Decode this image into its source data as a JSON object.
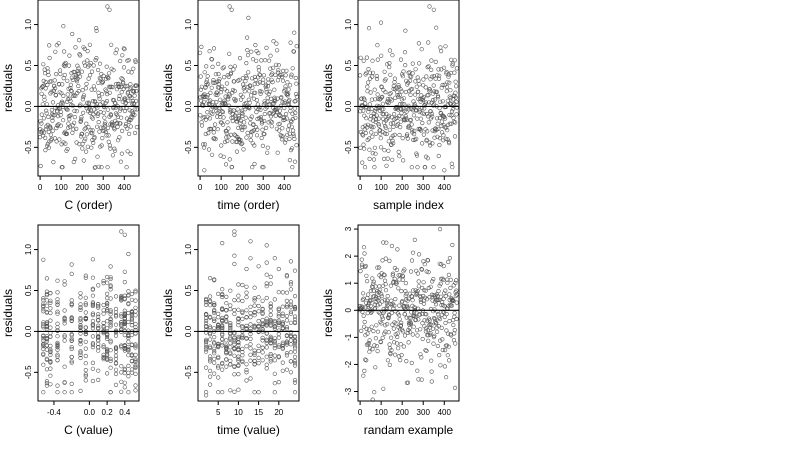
{
  "figure": {
    "point_color": "#555555",
    "zero_line_color": "#000000",
    "frame_color": "#000000"
  },
  "chart_data": [
    {
      "type": "scatter",
      "title": "",
      "xlabel": "C (order)",
      "ylabel": "residuals",
      "xlim": [
        -10,
        470
      ],
      "ylim": [
        -0.85,
        1.3
      ],
      "x_ticks": [
        0,
        100,
        200,
        300,
        400
      ],
      "x_tick_labels": [
        "0",
        "100",
        "200",
        "300",
        "400"
      ],
      "y_ticks": [
        -0.5,
        0.0,
        0.5,
        1.0
      ],
      "y_tick_labels": [
        "-0.5",
        "0.0",
        "0.5",
        "1.0"
      ],
      "reference_line_y": 0,
      "pattern": "order",
      "n_points": 460,
      "seed": 11,
      "sd": 0.33,
      "x_range": [
        0,
        460
      ],
      "points": [
        [
          320,
          1.22
        ],
        [
          330,
          1.18
        ],
        [
          110,
          0.98
        ],
        [
          130,
          -0.52
        ],
        [
          260,
          -0.75
        ],
        [
          430,
          -0.58
        ]
      ]
    },
    {
      "type": "scatter",
      "title": "",
      "xlabel": "time (order)",
      "ylabel": "residuals",
      "xlim": [
        -10,
        470
      ],
      "ylim": [
        -0.85,
        1.3
      ],
      "x_ticks": [
        0,
        100,
        200,
        300,
        400
      ],
      "x_tick_labels": [
        "0",
        "100",
        "200",
        "300",
        "400"
      ],
      "y_ticks": [
        -0.5,
        0.0,
        0.5,
        1.0
      ],
      "y_tick_labels": [
        "-0.5",
        "0.0",
        "0.5",
        "1.0"
      ],
      "reference_line_y": 0,
      "pattern": "order",
      "n_points": 460,
      "seed": 23,
      "sd": 0.33,
      "x_range": [
        0,
        460
      ],
      "points": [
        [
          140,
          1.22
        ],
        [
          150,
          1.18
        ],
        [
          20,
          -0.78
        ],
        [
          200,
          -0.45
        ],
        [
          430,
          0.78
        ]
      ]
    },
    {
      "type": "scatter",
      "title": "",
      "xlabel": "sample index",
      "ylabel": "residuals",
      "xlim": [
        -10,
        470
      ],
      "ylim": [
        -0.85,
        1.3
      ],
      "x_ticks": [
        0,
        100,
        200,
        300,
        400
      ],
      "x_tick_labels": [
        "0",
        "100",
        "200",
        "300",
        "400"
      ],
      "y_ticks": [
        -0.5,
        0.0,
        0.5,
        1.0
      ],
      "y_tick_labels": [
        "-0.5",
        "0.0",
        "0.5",
        "1.0"
      ],
      "reference_line_y": 0,
      "pattern": "order",
      "n_points": 460,
      "seed": 37,
      "sd": 0.33,
      "x_range": [
        0,
        460
      ],
      "points": [
        [
          330,
          1.22
        ],
        [
          350,
          1.18
        ],
        [
          100,
          -0.5
        ],
        [
          400,
          -0.78
        ]
      ]
    },
    {
      "type": "scatter",
      "title": "",
      "xlabel": "C (value)",
      "ylabel": "residuals",
      "xlim": [
        -0.58,
        0.56
      ],
      "ylim": [
        -0.85,
        1.3
      ],
      "x_ticks": [
        -0.4,
        0.0,
        0.2,
        0.4
      ],
      "x_tick_labels": [
        "-0.4",
        "0.0",
        "0.2",
        "0.4"
      ],
      "y_ticks": [
        -0.5,
        0.0,
        0.5,
        1.0
      ],
      "y_tick_labels": [
        "-0.5",
        "0.0",
        "0.5",
        "1.0"
      ],
      "reference_line_y": 0,
      "pattern": "columns",
      "columns": [
        -0.52,
        -0.48,
        -0.44,
        -0.36,
        -0.28,
        -0.2,
        -0.1,
        -0.04,
        0.04,
        0.1,
        0.16,
        0.2,
        0.24,
        0.3,
        0.36,
        0.4,
        0.44,
        0.48,
        0.52
      ],
      "n_points": 460,
      "seed": 51,
      "sd": 0.33,
      "points": [
        [
          0.36,
          1.22
        ],
        [
          0.4,
          1.18
        ],
        [
          -0.28,
          -0.62
        ],
        [
          0.52,
          -0.72
        ]
      ]
    },
    {
      "type": "scatter",
      "title": "",
      "xlabel": "time (value)",
      "ylabel": "residuals",
      "xlim": [
        0,
        25
      ],
      "ylim": [
        -0.85,
        1.3
      ],
      "x_ticks": [
        5,
        10,
        15,
        20
      ],
      "x_tick_labels": [
        "5",
        "10",
        "15",
        "20"
      ],
      "y_ticks": [
        -0.5,
        0.0,
        0.5,
        1.0
      ],
      "y_tick_labels": [
        "-0.5",
        "0.0",
        "0.5",
        "1.0"
      ],
      "reference_line_y": 0,
      "pattern": "columns",
      "columns": [
        2,
        3,
        4,
        5,
        6,
        7,
        8,
        9,
        10,
        11,
        12,
        13,
        14,
        15,
        16,
        17,
        18,
        19,
        20,
        21,
        22,
        23,
        24
      ],
      "n_points": 460,
      "seed": 67,
      "sd": 0.33,
      "points": [
        [
          9,
          1.22
        ],
        [
          9,
          1.18
        ],
        [
          2,
          -0.78
        ],
        [
          12,
          -0.6
        ]
      ]
    },
    {
      "type": "scatter",
      "title": "",
      "xlabel": "randam example",
      "ylabel": "residuals",
      "xlim": [
        -10,
        470
      ],
      "ylim": [
        -3.35,
        3.15
      ],
      "x_ticks": [
        0,
        100,
        200,
        300,
        400
      ],
      "x_tick_labels": [
        "0",
        "100",
        "200",
        "300",
        "400"
      ],
      "y_ticks": [
        -3,
        -2,
        -1,
        0,
        1,
        2,
        3
      ],
      "y_tick_labels": [
        "-3",
        "-2",
        "-1",
        "0",
        "1",
        "2",
        "3"
      ],
      "reference_line_y": 0,
      "pattern": "order",
      "n_points": 460,
      "seed": 89,
      "sd": 1.0,
      "x_range": [
        0,
        460
      ],
      "points": [
        [
          380,
          3.0
        ],
        [
          60,
          -3.3
        ],
        [
          110,
          -2.9
        ],
        [
          260,
          2.6
        ]
      ]
    }
  ]
}
